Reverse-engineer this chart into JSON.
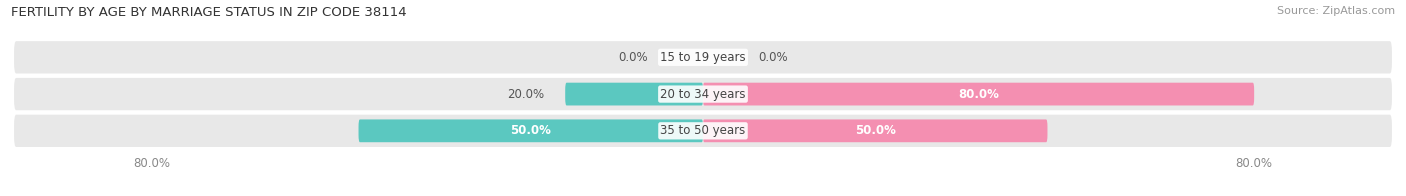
{
  "title": "FERTILITY BY AGE BY MARRIAGE STATUS IN ZIP CODE 38114",
  "source": "Source: ZipAtlas.com",
  "categories": [
    "15 to 19 years",
    "20 to 34 years",
    "35 to 50 years"
  ],
  "married_values": [
    0.0,
    20.0,
    50.0
  ],
  "unmarried_values": [
    0.0,
    80.0,
    50.0
  ],
  "married_color": "#5BC8C0",
  "unmarried_color": "#F48FB1",
  "bar_bg_color": "#E8E8E8",
  "bar_height": 0.62,
  "xlim": [
    -100,
    100
  ],
  "xtick_left": -80,
  "xtick_right": 80,
  "title_fontsize": 9.5,
  "source_fontsize": 8,
  "label_fontsize": 8.5,
  "legend_fontsize": 9,
  "background_color": "#FFFFFF"
}
